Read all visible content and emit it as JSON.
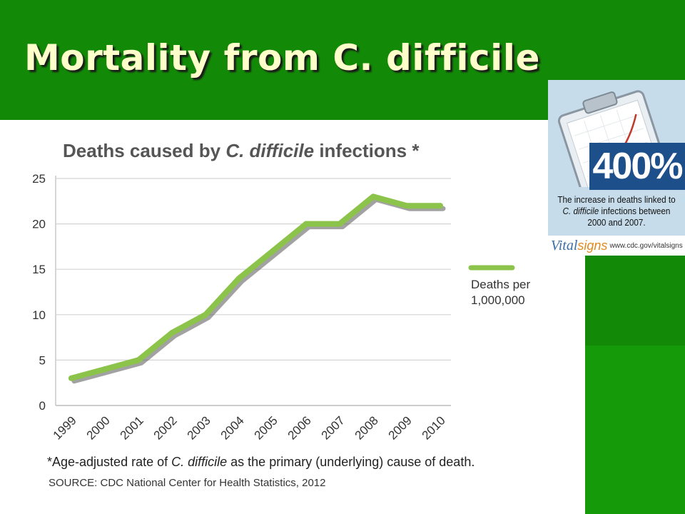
{
  "slide": {
    "title": "Mortality from C. difficile",
    "colors": {
      "band": "#138a07",
      "title": "#ffffcc"
    }
  },
  "chart_data": {
    "type": "line",
    "title_prefix": "Deaths caused by ",
    "title_italic": "C. difficile",
    "title_suffix": " infections *",
    "categories": [
      "1999",
      "2000",
      "2001",
      "2002",
      "2003",
      "2004",
      "2005",
      "2006",
      "2007",
      "2008",
      "2009",
      "2010"
    ],
    "series": [
      {
        "name": "Deaths per 1,000,000",
        "color": "#8cc34a",
        "values": [
          3.0,
          4.0,
          5.0,
          8.0,
          10.0,
          14.0,
          17.0,
          20.0,
          20.0,
          23.0,
          22.0,
          22.0
        ]
      }
    ],
    "legend": {
      "line1": "Deaths per",
      "line2": "1,000,000",
      "position": "right"
    },
    "yticks": [
      0,
      5,
      10,
      15,
      20,
      25
    ],
    "ylim": [
      0,
      25
    ],
    "grid": true,
    "xlabel": "",
    "ylabel": "",
    "footnote_prefix": "*Age-adjusted rate of ",
    "footnote_italic": "C. difficile",
    "footnote_suffix": " as the primary (underlying) cause of death.",
    "source": "SOURCE: CDC National Center for Health Statistics, 2012"
  },
  "badge": {
    "percent": "400%",
    "text_line1": "The increase in deaths linked to",
    "text_line2_italic": "C. difficile",
    "text_line2_rest": " infections between",
    "text_line3": "2000 and 2007.",
    "logo_vital": "Vital",
    "logo_signs": "signs",
    "url": "www.cdc.gov/vitalsigns",
    "colors": {
      "panel": "#c6dcea",
      "percent_bg": "#1d4f8a",
      "logo": "#3a6fa8",
      "signs": "#e08a1e"
    }
  }
}
